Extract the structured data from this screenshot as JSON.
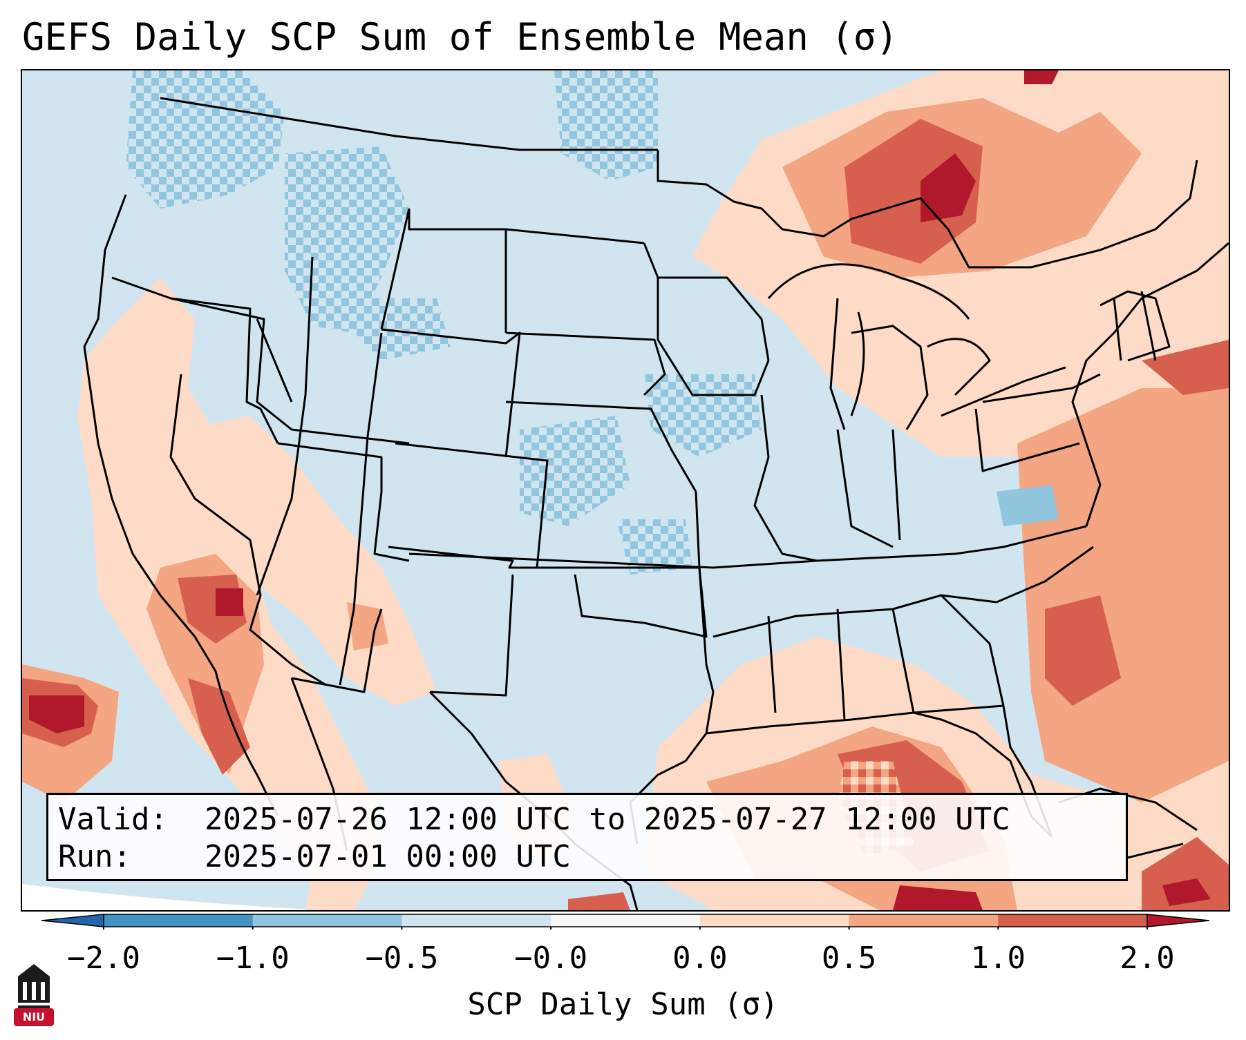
{
  "title": "GEFS Daily SCP Sum of Ensemble Mean (σ)",
  "validity": {
    "valid_label": "Valid:",
    "valid_value": "2025-07-26 12:00 UTC to 2025-07-27 12:00 UTC",
    "run_label": "Run:",
    "run_value": "2025-07-01 00:00 UTC"
  },
  "colorbar": {
    "label": "SCP Daily Sum (σ)",
    "ticks": [
      "−2.0",
      "−1.0",
      "−0.5",
      "−0.0",
      "0.0",
      "0.5",
      "1.0",
      "2.0"
    ],
    "segment_colors": [
      "#4393c3",
      "#92c5de",
      "#d1e5f0",
      "#f7f7f7",
      "#fddbc7",
      "#f4a582",
      "#d6604d"
    ],
    "under_color": "#2166ac",
    "over_color": "#b2182b"
  },
  "map": {
    "region": "Continental United States",
    "ocean_color": "#d1e5f0",
    "outside_color": "#ffffff"
  },
  "logo": {
    "text": "NIU",
    "color": "#c8102e",
    "icon": "university-building-icon"
  }
}
